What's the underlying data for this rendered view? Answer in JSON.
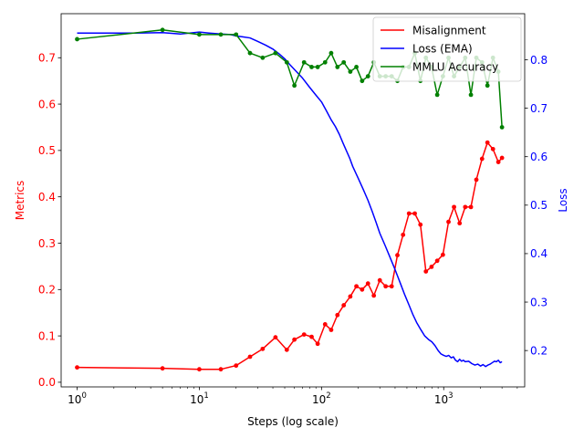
{
  "chart_data": {
    "type": "line",
    "title": "",
    "xlabel": "Steps (log scale)",
    "ylabel_left": "Metrics",
    "ylabel_right": "Loss",
    "x_scale": "log",
    "xlim": [
      0.74,
      4600
    ],
    "ylim_left": [
      -0.01,
      0.795
    ],
    "ylim_right": [
      0.125,
      0.895
    ],
    "x_ticks": [
      {
        "value": 1,
        "label": "10",
        "exp": "0"
      },
      {
        "value": 10,
        "label": "10",
        "exp": "1"
      },
      {
        "value": 100,
        "label": "10",
        "exp": "2"
      },
      {
        "value": 1000,
        "label": "10",
        "exp": "3"
      }
    ],
    "y_ticks_left": [
      "0.0",
      "0.1",
      "0.2",
      "0.3",
      "0.4",
      "0.5",
      "0.6",
      "0.7"
    ],
    "y_ticks_right": [
      "0.2",
      "0.3",
      "0.4",
      "0.5",
      "0.6",
      "0.7",
      "0.8"
    ],
    "legend_position": "top-right",
    "grid": false,
    "colors": {
      "misalignment": "#ff0000",
      "loss": "#0000ff",
      "mmlu": "#008000",
      "left_axis": "#ff0000",
      "right_axis": "#0000ff"
    },
    "series": [
      {
        "name": "Misalignment",
        "axis": "left",
        "markers": true,
        "x": [
          1,
          5,
          10,
          15,
          20,
          26,
          33,
          42,
          52,
          60,
          72,
          83,
          93,
          107,
          120,
          135,
          152,
          172,
          193,
          215,
          240,
          268,
          300,
          335,
          375,
          418,
          465,
          520,
          580,
          645,
          715,
          795,
          885,
          985,
          1095,
          1215,
          1350,
          1500,
          1670,
          1850,
          2060,
          2280,
          2530,
          2800,
          3000
        ],
        "values": [
          0.032,
          0.03,
          0.028,
          0.028,
          0.036,
          0.055,
          0.072,
          0.097,
          0.07,
          0.092,
          0.103,
          0.098,
          0.083,
          0.125,
          0.113,
          0.145,
          0.166,
          0.185,
          0.207,
          0.2,
          0.213,
          0.187,
          0.22,
          0.207,
          0.207,
          0.274,
          0.318,
          0.364,
          0.364,
          0.34,
          0.239,
          0.249,
          0.262,
          0.275,
          0.346,
          0.378,
          0.343,
          0.378,
          0.378,
          0.437,
          0.482,
          0.517,
          0.503,
          0.475,
          0.484
        ]
      },
      {
        "name": "Loss (EMA)",
        "axis": "right",
        "markers": false,
        "x": [
          1,
          2,
          3,
          5,
          7,
          10,
          12,
          15,
          18,
          20,
          23,
          26,
          30,
          35,
          40,
          45,
          50,
          55,
          60,
          70,
          80,
          90,
          100,
          110,
          120,
          130,
          140,
          150,
          160,
          170,
          180,
          200,
          220,
          240,
          260,
          280,
          300,
          330,
          360,
          400,
          440,
          480,
          520,
          560,
          600,
          650,
          700,
          750,
          800,
          850,
          900,
          950,
          1000,
          1050,
          1100,
          1150,
          1200,
          1250,
          1300,
          1350,
          1400,
          1450,
          1500,
          1600,
          1700,
          1800,
          1900,
          2000,
          2100,
          2200,
          2300,
          2400,
          2500,
          2600,
          2700,
          2800,
          2900,
          3000
        ],
        "values": [
          0.855,
          0.855,
          0.855,
          0.856,
          0.853,
          0.857,
          0.855,
          0.853,
          0.852,
          0.849,
          0.847,
          0.845,
          0.838,
          0.83,
          0.822,
          0.812,
          0.802,
          0.79,
          0.78,
          0.762,
          0.743,
          0.727,
          0.713,
          0.694,
          0.676,
          0.662,
          0.646,
          0.628,
          0.612,
          0.597,
          0.58,
          0.555,
          0.532,
          0.51,
          0.487,
          0.464,
          0.442,
          0.418,
          0.395,
          0.367,
          0.34,
          0.315,
          0.294,
          0.274,
          0.258,
          0.243,
          0.23,
          0.223,
          0.218,
          0.21,
          0.2,
          0.193,
          0.19,
          0.188,
          0.19,
          0.185,
          0.187,
          0.18,
          0.177,
          0.182,
          0.178,
          0.18,
          0.177,
          0.178,
          0.173,
          0.17,
          0.172,
          0.168,
          0.171,
          0.167,
          0.17,
          0.172,
          0.175,
          0.178,
          0.177,
          0.18,
          0.175,
          0.177
        ]
      },
      {
        "name": "MMLU Accuracy",
        "axis": "left",
        "markers": true,
        "x": [
          1,
          5,
          10,
          15,
          20,
          26,
          33,
          42,
          52,
          60,
          72,
          83,
          93,
          107,
          120,
          135,
          152,
          172,
          193,
          215,
          240,
          268,
          300,
          335,
          375,
          418,
          465,
          520,
          580,
          645,
          715,
          795,
          885,
          985,
          1095,
          1215,
          1350,
          1500,
          1670,
          1850,
          2060,
          2280,
          2530,
          2800,
          3000
        ],
        "values": [
          0.74,
          0.76,
          0.75,
          0.75,
          0.75,
          0.71,
          0.7,
          0.71,
          0.69,
          0.64,
          0.69,
          0.68,
          0.68,
          0.69,
          0.71,
          0.68,
          0.69,
          0.67,
          0.68,
          0.65,
          0.66,
          0.69,
          0.66,
          0.66,
          0.66,
          0.65,
          0.68,
          0.68,
          0.71,
          0.65,
          0.7,
          0.68,
          0.62,
          0.66,
          0.7,
          0.66,
          0.68,
          0.7,
          0.62,
          0.7,
          0.69,
          0.64,
          0.7,
          0.67,
          0.55
        ]
      }
    ]
  }
}
